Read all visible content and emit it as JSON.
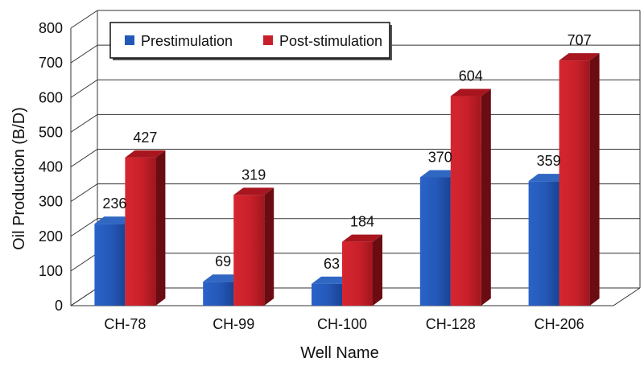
{
  "chart_data": {
    "type": "bar",
    "title": "",
    "xlabel": "Well Name",
    "ylabel": "Oil Production (B/D)",
    "categories": [
      "CH-78",
      "CH-99",
      "CH-100",
      "CH-128",
      "CH-206"
    ],
    "series": [
      {
        "name": "Prestimulation",
        "values": [
          236,
          69,
          63,
          370,
          359
        ],
        "color": "#2458b8"
      },
      {
        "name": "Post-stimulation",
        "values": [
          427,
          319,
          184,
          604,
          707
        ],
        "color": "#c8202a"
      }
    ],
    "ylim": [
      0,
      800
    ],
    "yticks": [
      0,
      100,
      200,
      300,
      400,
      500,
      600,
      700,
      800
    ],
    "grid": true,
    "legend_position": "top-left",
    "style": "3d"
  }
}
